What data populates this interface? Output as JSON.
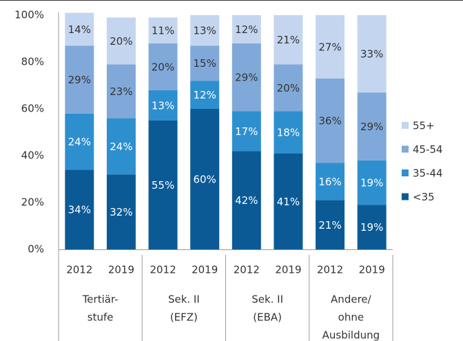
{
  "chart_data": {
    "type": "stacked_bar",
    "categories": [
      "2012",
      "2019",
      "2012",
      "2019",
      "2012",
      "2019",
      "2012",
      "2019"
    ],
    "groups": [
      [
        "Tertiär-",
        "stufe"
      ],
      [
        "Sek. II",
        "(EFZ)"
      ],
      [
        "Sek. II",
        "(EBA)"
      ],
      [
        "Andere/",
        "ohne",
        "Ausbildung"
      ]
    ],
    "series": [
      {
        "name": "<35",
        "color": "#0b5a96",
        "label_color": "#ffffff",
        "values": [
          34,
          32,
          55,
          60,
          42,
          41,
          21,
          19
        ],
        "value_labels": [
          "34%",
          "32%",
          "55%",
          "60%",
          "42%",
          "41%",
          "21%",
          "19%"
        ]
      },
      {
        "name": "35-44",
        "color": "#2e8fcf",
        "label_color": "#ffffff",
        "values": [
          24,
          24,
          13,
          12,
          17,
          18,
          16,
          19
        ],
        "value_labels": [
          "24%",
          "24%",
          "13%",
          "12%",
          "17%",
          "18%",
          "16%",
          "19%"
        ]
      },
      {
        "name": "45-54",
        "color": "#80a9d9",
        "label_color": "#333333",
        "values": [
          29,
          23,
          20,
          15,
          29,
          20,
          36,
          29
        ],
        "value_labels": [
          "29%",
          "23%",
          "20%",
          "15%",
          "29%",
          "20%",
          "36%",
          "29%"
        ]
      },
      {
        "name": "55+",
        "color": "#c4d6ef",
        "label_color": "#333333",
        "values": [
          14,
          20,
          11,
          13,
          12,
          21,
          27,
          33
        ],
        "value_labels": [
          "14%",
          "20%",
          "11%",
          "13%",
          "12%",
          "21%",
          "27%",
          "33%"
        ]
      }
    ],
    "ylim": [
      0,
      100
    ],
    "yticks": [
      {
        "value": 0,
        "label": "0%"
      },
      {
        "value": 20,
        "label": "20%"
      },
      {
        "value": 40,
        "label": "40%"
      },
      {
        "value": 60,
        "label": "60%"
      },
      {
        "value": 80,
        "label": "80%"
      },
      {
        "value": 100,
        "label": "100%"
      }
    ],
    "legend": "right"
  }
}
